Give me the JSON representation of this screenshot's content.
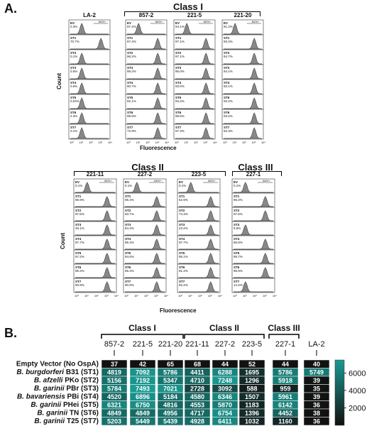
{
  "panel_a": {
    "letter": "A.",
    "fig1": {
      "class_title": "Class I",
      "columns": [
        "LA-2",
        "857-2",
        "221-5",
        "221-20"
      ],
      "xlabel": "Fluorescence",
      "ylabel": "Count",
      "gate_label": "84%+",
      "rows": [
        "EV",
        "ST1",
        "ST2",
        "ST3",
        "ST4",
        "ST5",
        "ST6",
        "ST7"
      ],
      "pct": [
        [
          "0.3%",
          "97.4%",
          "94.1%",
          "91.3%"
        ],
        [
          "70.7%",
          "97.4%",
          "97.1%",
          "93.4%"
        ],
        [
          "0.1%",
          "96.2%",
          "97.1%",
          "94.7%"
        ],
        [
          "0.5%",
          "99.2%",
          "96.0%",
          "94.1%"
        ],
        [
          "0.5%",
          "90.7%",
          "93.0%",
          "93.1%"
        ],
        [
          "0.04%",
          "92.1%",
          "93.4%",
          "93.2%"
        ],
        [
          "2.3%",
          "99.8%",
          "99.5%",
          "93.2%"
        ],
        [
          "0.1%",
          "72.9%",
          "97.3%",
          "92.3%"
        ]
      ],
      "ticks": [
        "10^0",
        "10^1",
        "10^2",
        "10^3",
        "10^4"
      ]
    },
    "fig2": {
      "class2_title": "Class II",
      "class3_title": "Class III",
      "columns": [
        "221-11",
        "227-2",
        "223-5",
        "227-1"
      ],
      "xlabel": "Fluorescence",
      "ylabel": "Count",
      "gate_label": "84%+",
      "rows": [
        "EV",
        "ST1",
        "ST2",
        "ST3",
        "ST4",
        "ST5",
        "ST6",
        "ST7"
      ],
      "pct": [
        [
          "0.1%",
          "0.1%",
          "0.1%",
          "0.1%"
        ],
        [
          "96.9%",
          "95.4%",
          "52.9%",
          "96.3%"
        ],
        [
          "97.6%",
          "93.7%",
          "74.3%",
          "97.5%"
        ],
        [
          "45.1%",
          "84.4%",
          "43.2%",
          "9.5%"
        ],
        [
          "97.7%",
          "95.4%",
          "97.7%",
          "85.8%"
        ],
        [
          "97.2%",
          "94.6%",
          "96.1%",
          "89.7%"
        ],
        [
          "96.4%",
          "95.3%",
          "91.4%",
          "96.9%"
        ],
        [
          "90.9%",
          "90.9%",
          "92.2%",
          "14.2%"
        ]
      ]
    }
  },
  "panel_b": {
    "letter": "B.",
    "class_titles": [
      "Class I",
      "Class II",
      "Class III"
    ],
    "columns": [
      "857-2",
      "221-5",
      "221-20",
      "221-11",
      "227-2",
      "223-5",
      "227-1",
      "LA-2"
    ],
    "rows": [
      {
        "label": "Empty Vector (No OspA)",
        "genus": "",
        "species": "",
        "suffix": ""
      },
      {
        "label": "B. burgdorferi B31 (ST1)",
        "genus": "B. burgdorferi",
        "suffix": " B31 (ST1)"
      },
      {
        "label": "B. afzelli PKo (ST2)",
        "genus": "B. afzelli",
        "suffix": " PKo (ST2)"
      },
      {
        "label": "B. garinii PBr (ST3)",
        "genus": "B. garinii",
        "suffix": " PBr (ST3)"
      },
      {
        "label": "B. bavariensis PBi (ST4)",
        "genus": "B. bavariensis",
        "suffix": " PBi (ST4)"
      },
      {
        "label": "B. garinii PHei (ST5)",
        "genus": "B. garinii",
        "suffix": " PHei (ST5)"
      },
      {
        "label": "B. garinii TN (ST6)",
        "genus": "B. garinii",
        "suffix": " TN (ST6)"
      },
      {
        "label": "B. garinii T25 (ST7)",
        "genus": "B. garinii",
        "suffix": " T25 (ST7)"
      }
    ],
    "values": [
      [
        37,
        42,
        65,
        68,
        44,
        52,
        44,
        40
      ],
      [
        4819,
        7092,
        5786,
        4411,
        6288,
        1695,
        5786,
        5749
      ],
      [
        5156,
        7192,
        5347,
        4710,
        7248,
        1296,
        5918,
        39
      ],
      [
        5784,
        7493,
        7021,
        2728,
        3092,
        588,
        959,
        35
      ],
      [
        4520,
        6896,
        5184,
        4580,
        6346,
        1507,
        5961,
        39
      ],
      [
        6321,
        6750,
        4816,
        4553,
        5870,
        1183,
        6142,
        36
      ],
      [
        4849,
        4849,
        4956,
        4717,
        6754,
        1396,
        4452,
        38
      ],
      [
        5203,
        5449,
        5439,
        4928,
        6411,
        1032,
        1160,
        36
      ]
    ],
    "colorbar": {
      "ticks": [
        "6000",
        "4000",
        "2000"
      ],
      "min": 0,
      "max": 7500,
      "low_color": "#111111",
      "high_color": "#1a9a92"
    }
  }
}
